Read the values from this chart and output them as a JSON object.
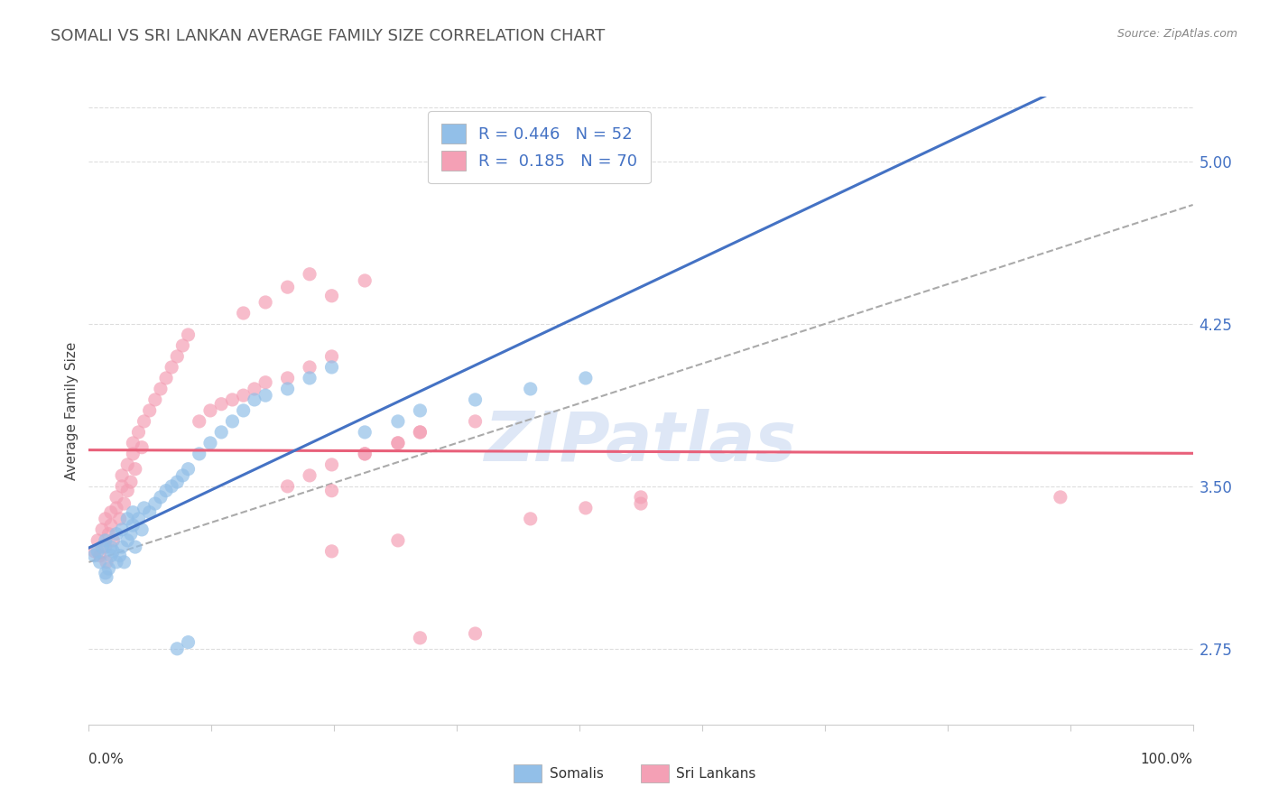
{
  "title": "SOMALI VS SRI LANKAN AVERAGE FAMILY SIZE CORRELATION CHART",
  "source": "Source: ZipAtlas.com",
  "ylabel": "Average Family Size",
  "yticks": [
    2.75,
    3.5,
    4.25,
    5.0
  ],
  "xmin": 0.0,
  "xmax": 1.0,
  "ymin": 2.4,
  "ymax": 5.3,
  "somali_color": "#92bfe8",
  "srilanka_color": "#f4a0b5",
  "somali_line_color": "#4472C4",
  "srilanka_line_color": "#E8607A",
  "gray_dash_color": "#aaaaaa",
  "legend_text_color": "#4472C4",
  "legend_R1": "R = 0.446",
  "legend_N1": "N = 52",
  "legend_R2": "R =  0.185",
  "legend_N2": "N = 70",
  "legend_label1": "Somalis",
  "legend_label2": "Sri Lankans",
  "title_color": "#555555",
  "source_color": "#888888",
  "tick_color": "#4472C4",
  "axis_color": "#cccccc",
  "grid_color": "#dddddd",
  "watermark_color": "#c8d8f0",
  "somali_x": [
    0.005,
    0.008,
    0.01,
    0.012,
    0.015,
    0.015,
    0.016,
    0.018,
    0.02,
    0.02,
    0.022,
    0.025,
    0.025,
    0.028,
    0.03,
    0.03,
    0.032,
    0.035,
    0.035,
    0.038,
    0.04,
    0.04,
    0.042,
    0.045,
    0.048,
    0.05,
    0.055,
    0.06,
    0.065,
    0.07,
    0.075,
    0.08,
    0.085,
    0.09,
    0.1,
    0.11,
    0.12,
    0.13,
    0.14,
    0.15,
    0.16,
    0.18,
    0.2,
    0.22,
    0.25,
    0.28,
    0.3,
    0.35,
    0.4,
    0.45,
    0.08,
    0.09
  ],
  "somali_y": [
    3.18,
    3.2,
    3.15,
    3.22,
    3.1,
    3.25,
    3.08,
    3.12,
    3.18,
    3.22,
    3.2,
    3.15,
    3.28,
    3.18,
    3.22,
    3.3,
    3.15,
    3.25,
    3.35,
    3.28,
    3.32,
    3.38,
    3.22,
    3.35,
    3.3,
    3.4,
    3.38,
    3.42,
    3.45,
    3.48,
    3.5,
    3.52,
    3.55,
    3.58,
    3.65,
    3.7,
    3.75,
    3.8,
    3.85,
    3.9,
    3.92,
    3.95,
    4.0,
    4.05,
    3.75,
    3.8,
    3.85,
    3.9,
    3.95,
    4.0,
    2.75,
    2.78
  ],
  "srilanka_x": [
    0.005,
    0.008,
    0.01,
    0.012,
    0.015,
    0.015,
    0.016,
    0.018,
    0.02,
    0.02,
    0.022,
    0.025,
    0.025,
    0.028,
    0.03,
    0.03,
    0.032,
    0.035,
    0.035,
    0.038,
    0.04,
    0.04,
    0.042,
    0.045,
    0.048,
    0.05,
    0.055,
    0.06,
    0.065,
    0.07,
    0.075,
    0.08,
    0.085,
    0.09,
    0.1,
    0.11,
    0.12,
    0.13,
    0.14,
    0.15,
    0.16,
    0.18,
    0.2,
    0.22,
    0.25,
    0.28,
    0.3,
    0.35,
    0.18,
    0.2,
    0.22,
    0.25,
    0.14,
    0.16,
    0.18,
    0.2,
    0.22,
    0.25,
    0.28,
    0.3,
    0.5,
    0.88,
    0.22,
    0.28,
    0.3,
    0.35,
    0.4,
    0.45,
    0.5,
    0.22
  ],
  "srilanka_y": [
    3.2,
    3.25,
    3.18,
    3.3,
    3.22,
    3.35,
    3.15,
    3.28,
    3.32,
    3.38,
    3.25,
    3.4,
    3.45,
    3.35,
    3.5,
    3.55,
    3.42,
    3.48,
    3.6,
    3.52,
    3.65,
    3.7,
    3.58,
    3.75,
    3.68,
    3.8,
    3.85,
    3.9,
    3.95,
    4.0,
    4.05,
    4.1,
    4.15,
    4.2,
    3.8,
    3.85,
    3.88,
    3.9,
    3.92,
    3.95,
    3.98,
    4.0,
    4.05,
    4.1,
    3.65,
    3.7,
    3.75,
    3.8,
    4.42,
    4.48,
    4.38,
    4.45,
    4.3,
    4.35,
    3.5,
    3.55,
    3.6,
    3.65,
    3.7,
    3.75,
    3.42,
    3.45,
    3.2,
    3.25,
    2.8,
    2.82,
    3.35,
    3.4,
    3.45,
    3.48
  ],
  "dashed_line_x": [
    0.0,
    1.0
  ],
  "dashed_line_y": [
    3.15,
    4.8
  ]
}
